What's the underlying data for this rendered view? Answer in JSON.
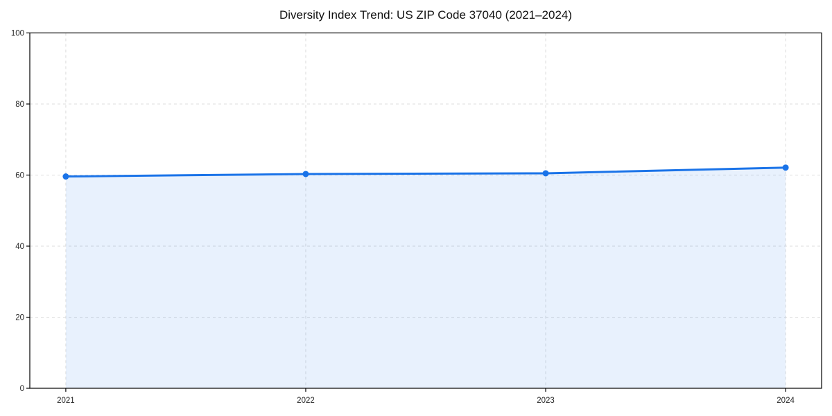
{
  "chart_data": {
    "type": "area",
    "title": "Diversity Index Trend: US ZIP Code 37040 (2021–2024)",
    "x": [
      2021,
      2022,
      2023,
      2024
    ],
    "xticks": [
      "2021",
      "2022",
      "2023",
      "2024"
    ],
    "yticks": [
      0,
      20,
      40,
      60,
      80,
      100
    ],
    "series": [
      {
        "name": "Diversity Index",
        "values": [
          59.6,
          60.3,
          60.5,
          62.1
        ]
      }
    ],
    "xlabel": "",
    "ylabel": "",
    "xlim": [
      2020.85,
      2024.15
    ],
    "ylim": [
      0,
      100
    ],
    "grid": true,
    "legend": "none",
    "line_color": "#1a73e8",
    "fill_color": "rgba(26,115,232,0.10)",
    "grid_color": "#dcdcdc",
    "axis_color": "#000000",
    "tick_label_color": "#262626",
    "marker_radius": 4.5,
    "line_width": 3
  }
}
